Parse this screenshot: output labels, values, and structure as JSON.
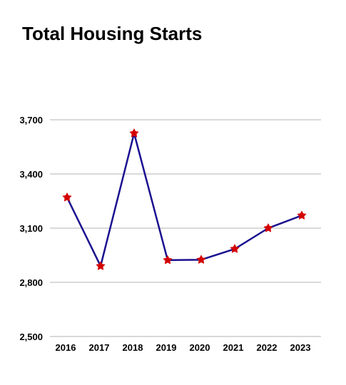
{
  "chart_data": {
    "type": "line",
    "title": "Total Housing Starts",
    "xlabel": "",
    "ylabel": "",
    "categories": [
      "2016",
      "2017",
      "2018",
      "2019",
      "2020",
      "2021",
      "2022",
      "2023"
    ],
    "series": [
      {
        "values": [
          3270,
          2890,
          3625,
          2923,
          2925,
          2985,
          3100,
          3170
        ],
        "color": "#1a0f8f",
        "marker": "star",
        "marker_color": "#d40000"
      }
    ],
    "ylim": [
      2500,
      3700
    ],
    "yticks": [
      2500,
      2800,
      3100,
      3400,
      3700
    ],
    "ytick_labels": [
      "2,500",
      "2,800",
      "3,100",
      "3,400",
      "3,700"
    ],
    "grid": true,
    "grid_color": "#b3b3b3",
    "legend": "none"
  }
}
